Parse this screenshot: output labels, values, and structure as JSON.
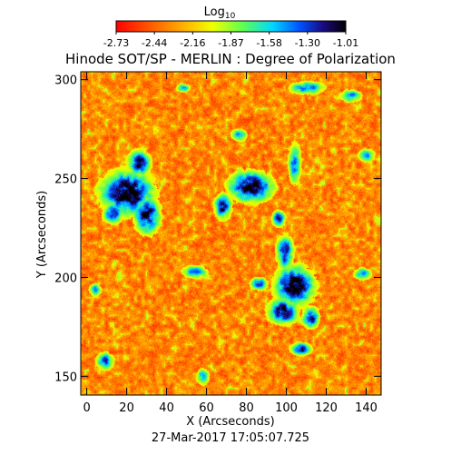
{
  "chart_data": {
    "type": "heatmap",
    "title": "Hinode SOT/SP - MERLIN : Degree of Polarization",
    "xlabel": "X (Arcseconds)",
    "ylabel": "Y (Arcseconds)",
    "timestamp": "27-Mar-2017 17:05:07.725",
    "x_ticks": [
      0,
      20,
      40,
      60,
      80,
      100,
      120,
      140
    ],
    "y_ticks": [
      150,
      200,
      250,
      300
    ],
    "xlim": [
      -3,
      147.5
    ],
    "ylim": [
      140.5,
      304
    ],
    "colorbar": {
      "label": "Log",
      "label_subscript": "10",
      "ticks": [
        "-2.73",
        "-2.44",
        "-2.16",
        "-1.87",
        "-1.58",
        "-1.30",
        "-1.01"
      ],
      "range": [
        -2.73,
        -1.01
      ],
      "colors": [
        "#ff0000",
        "#ff7a00",
        "#ffe600",
        "#7fff40",
        "#00e0ff",
        "#0040ff",
        "#2a0070",
        "#000000"
      ]
    },
    "colormap_stops": [
      {
        "v": 0.0,
        "c": "#ff0000"
      },
      {
        "v": 0.15,
        "c": "#ff5a00"
      },
      {
        "v": 0.3,
        "c": "#ffb400"
      },
      {
        "v": 0.42,
        "c": "#f0ff00"
      },
      {
        "v": 0.55,
        "c": "#60ff50"
      },
      {
        "v": 0.68,
        "c": "#00d8ff"
      },
      {
        "v": 0.8,
        "c": "#0050ff"
      },
      {
        "v": 0.9,
        "c": "#1a0a80"
      },
      {
        "v": 1.0,
        "c": "#000000"
      }
    ],
    "network_patches": [
      {
        "x": 20,
        "y": 243,
        "rx": 12,
        "ry": 10,
        "level": 0.95
      },
      {
        "x": 26,
        "y": 258,
        "rx": 5,
        "ry": 6,
        "level": 0.85
      },
      {
        "x": 30,
        "y": 232,
        "rx": 6,
        "ry": 9,
        "level": 0.85
      },
      {
        "x": 13,
        "y": 233,
        "rx": 5,
        "ry": 5,
        "level": 0.7
      },
      {
        "x": 82,
        "y": 246,
        "rx": 10,
        "ry": 7,
        "level": 0.95
      },
      {
        "x": 68,
        "y": 236,
        "rx": 4,
        "ry": 6,
        "level": 0.8
      },
      {
        "x": 99,
        "y": 213,
        "rx": 4,
        "ry": 8,
        "level": 0.75
      },
      {
        "x": 104,
        "y": 196,
        "rx": 9,
        "ry": 9,
        "level": 0.95
      },
      {
        "x": 98,
        "y": 183,
        "rx": 7,
        "ry": 6,
        "level": 0.85
      },
      {
        "x": 112,
        "y": 180,
        "rx": 4,
        "ry": 5,
        "level": 0.8
      },
      {
        "x": 104,
        "y": 258,
        "rx": 3,
        "ry": 10,
        "level": 0.6
      },
      {
        "x": 86,
        "y": 197,
        "rx": 4,
        "ry": 3,
        "level": 0.7
      },
      {
        "x": 54,
        "y": 203,
        "rx": 6,
        "ry": 3,
        "level": 0.6
      },
      {
        "x": 107,
        "y": 164,
        "rx": 5,
        "ry": 3,
        "level": 0.7
      },
      {
        "x": 9,
        "y": 158,
        "rx": 4,
        "ry": 4,
        "level": 0.7
      },
      {
        "x": 138,
        "y": 202,
        "rx": 4,
        "ry": 3,
        "level": 0.6
      },
      {
        "x": 48,
        "y": 296,
        "rx": 3,
        "ry": 2,
        "level": 0.7
      },
      {
        "x": 110,
        "y": 296,
        "rx": 8,
        "ry": 3,
        "level": 0.65
      },
      {
        "x": 132,
        "y": 292,
        "rx": 5,
        "ry": 3,
        "level": 0.6
      },
      {
        "x": 58,
        "y": 150,
        "rx": 3,
        "ry": 4,
        "level": 0.55
      },
      {
        "x": 140,
        "y": 262,
        "rx": 4,
        "ry": 3,
        "level": 0.55
      },
      {
        "x": 4,
        "y": 194,
        "rx": 3,
        "ry": 3,
        "level": 0.55
      },
      {
        "x": 76,
        "y": 272,
        "rx": 4,
        "ry": 3,
        "level": 0.55
      },
      {
        "x": 96,
        "y": 230,
        "rx": 3,
        "ry": 4,
        "level": 0.7
      }
    ]
  }
}
